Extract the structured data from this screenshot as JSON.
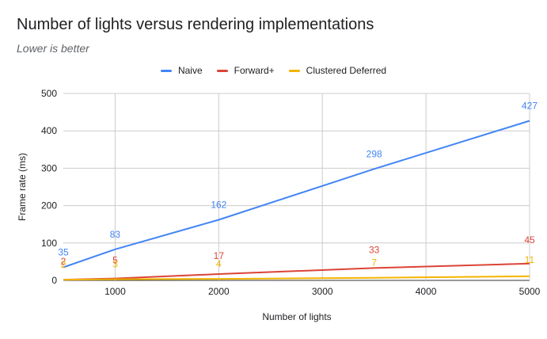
{
  "chart_data": {
    "type": "line",
    "title": "Number of lights versus rendering implementations",
    "subtitle": "Lower is better",
    "xlabel": "Number of lights",
    "ylabel": "Frame rate (ms)",
    "xlim": [
      500,
      5000
    ],
    "ylim": [
      0,
      500
    ],
    "x_ticks": [
      1000,
      2000,
      3000,
      4000,
      5000
    ],
    "y_ticks": [
      0,
      100,
      200,
      300,
      400,
      500
    ],
    "grid": true,
    "legend_position": "top",
    "x": [
      500,
      1000,
      2000,
      3500,
      5000
    ],
    "series": [
      {
        "name": "Naive",
        "color": "#4285f4",
        "values": [
          35,
          83,
          162,
          298,
          427
        ]
      },
      {
        "name": "Forward+",
        "color": "#db4437",
        "values": [
          2,
          5,
          17,
          33,
          45
        ]
      },
      {
        "name": "Clustered Deferred",
        "color": "#f4b400",
        "values": [
          2,
          3,
          4,
          7,
          11
        ]
      }
    ]
  }
}
